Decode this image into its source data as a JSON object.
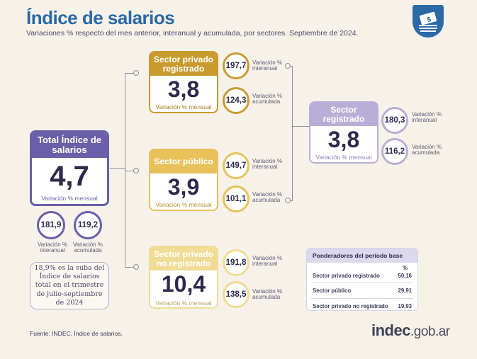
{
  "header": {
    "title": "Índice de salarios",
    "subtitle": "Variaciones % respecto del mes anterior, interanual y acumulada, por sectores. Septiembre de 2024."
  },
  "colors": {
    "total": "#6a5fa8",
    "privado_registrado": "#c99a2e",
    "publico": "#e8c15a",
    "no_registrado": "#f0dc95",
    "registrado": "#b9aed6",
    "brand": "#2c6aa6"
  },
  "total": {
    "title": "Total Índice de salarios",
    "value": "4,7",
    "label": "Variación % mensual",
    "interanual": "181,9",
    "interanual_label": "Variación % interanual",
    "acumulada": "119,2",
    "acumulada_label": "Variación % acumulada"
  },
  "privado_registrado": {
    "title": "Sector privado registrado",
    "value": "3,8",
    "label": "Variación % mensual",
    "interanual": "197,7",
    "interanual_label": "Variación % interanual",
    "acumulada": "124,3",
    "acumulada_label": "Variación % acumulada"
  },
  "publico": {
    "title": "Sector público",
    "value": "3,9",
    "label": "Variación % mensual",
    "interanual": "149,7",
    "interanual_label": "Variación % interanual",
    "acumulada": "101,1",
    "acumulada_label": "Variación % acumulada"
  },
  "no_registrado": {
    "title": "Sector privado no registrado",
    "value": "10,4",
    "label": "Variación % mensual",
    "interanual": "191,8",
    "interanual_label": "Variación % interanual",
    "acumulada": "138,5",
    "acumulada_label": "Variación % acumulada"
  },
  "registrado": {
    "title": "Sector registrado",
    "value": "3,8",
    "label": "Variación % mensual",
    "interanual": "180,3",
    "interanual_label": "Variación % interanual",
    "acumulada": "116,2",
    "acumulada_label": "Variación % acumulada"
  },
  "note": "18,9% es la suba del Índice de salarios total en el trimestre de julio-septiembre de 2024",
  "ponderadores": {
    "title": "Ponderadores del período base",
    "unit": "%",
    "rows": [
      {
        "label": "Sector privado registrado",
        "value": "50,16"
      },
      {
        "label": "Sector público",
        "value": "29,91"
      },
      {
        "label": "Sector privado no registrado",
        "value": "19,93"
      }
    ]
  },
  "footer": {
    "source": "Fuente: INDEC, Índice de salarios.",
    "brand_bold": "indec",
    "brand_rest": ".gob.ar"
  },
  "logo_icon": "salary-money-icon"
}
